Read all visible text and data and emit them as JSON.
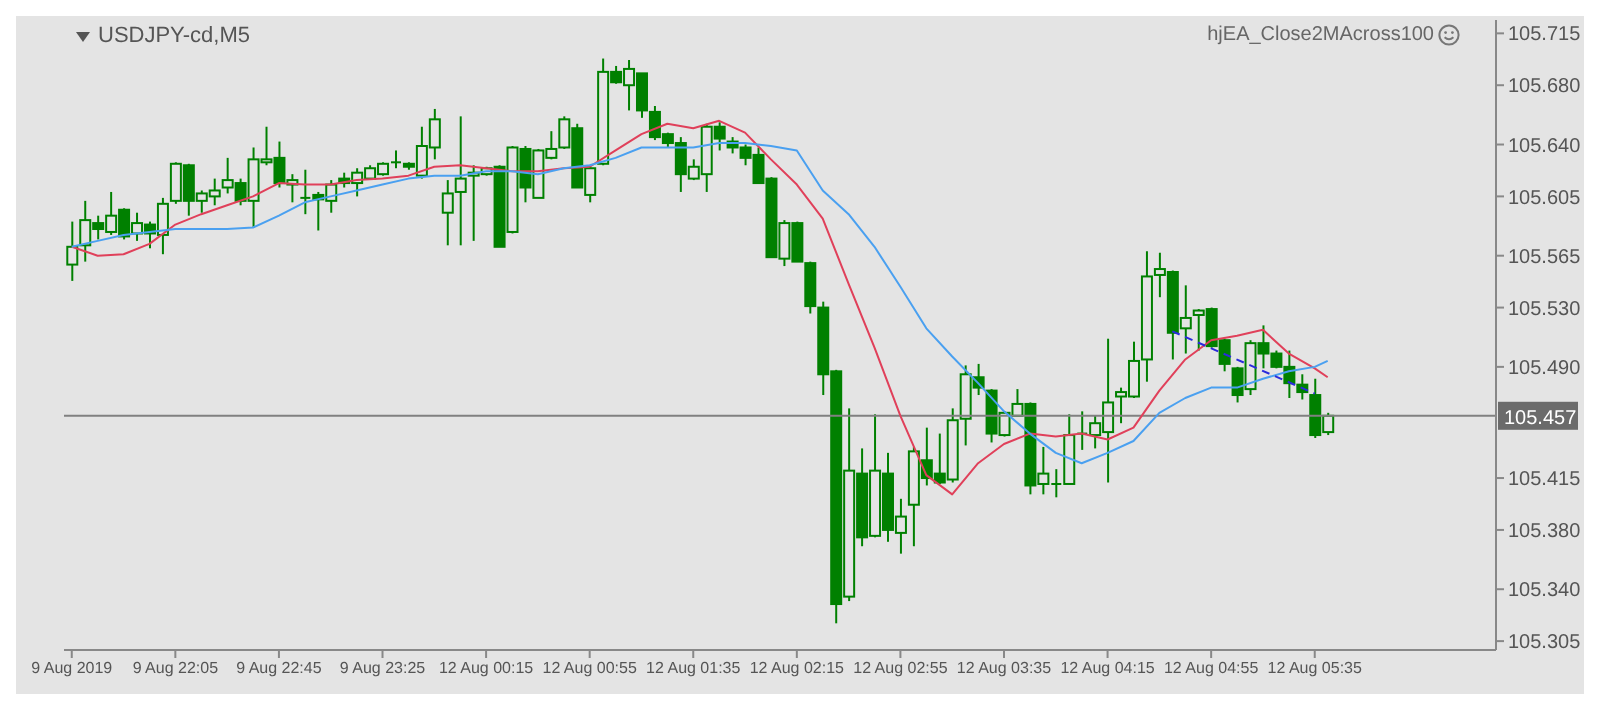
{
  "chart_data": {
    "type": "candlestick",
    "title": "USDJPY-cd,M5",
    "annotations": [
      "hjEA_Close2MAcross100"
    ],
    "color": "#008000",
    "categories": [
      "9 Aug 2019",
      null,
      null,
      null,
      null,
      null,
      null,
      null,
      "9 Aug 22:05",
      null,
      null,
      null,
      null,
      null,
      null,
      null,
      "9 Aug 22:45",
      null,
      null,
      null,
      null,
      null,
      null,
      null,
      "9 Aug 23:25",
      null,
      null,
      null,
      null,
      null,
      null,
      null,
      "12 Aug 00:15",
      null,
      null,
      null,
      null,
      null,
      null,
      null,
      "12 Aug 00:55",
      null,
      null,
      null,
      null,
      null,
      null,
      null,
      "12 Aug 01:35",
      null,
      null,
      null,
      null,
      null,
      null,
      null,
      "12 Aug 02:15",
      null,
      null,
      null,
      null,
      null,
      null,
      null,
      "12 Aug 02:55",
      null,
      null,
      null,
      null,
      null,
      null,
      null,
      "12 Aug 03:35",
      null,
      null,
      null,
      null,
      null,
      null,
      null,
      "12 Aug 04:15",
      null,
      null,
      null,
      null,
      null,
      null,
      null,
      "12 Aug 04:55",
      null,
      null,
      null,
      null,
      null,
      null,
      null,
      "12 Aug 05:35",
      null
    ],
    "ohlc": [
      [
        105.559,
        105.588,
        105.548,
        105.571
      ],
      [
        105.572,
        105.602,
        105.561,
        105.589
      ],
      [
        105.587,
        105.592,
        105.576,
        105.583
      ],
      [
        105.581,
        105.608,
        105.579,
        105.592
      ],
      [
        105.596,
        105.597,
        105.576,
        105.578
      ],
      [
        105.58,
        105.594,
        105.575,
        105.587
      ],
      [
        105.586,
        105.588,
        105.57,
        105.58
      ],
      [
        105.579,
        105.604,
        105.566,
        105.6
      ],
      [
        105.602,
        105.628,
        105.6,
        105.627
      ],
      [
        105.626,
        105.627,
        105.592,
        105.602
      ],
      [
        105.602,
        105.609,
        105.594,
        105.607
      ],
      [
        105.605,
        105.617,
        105.599,
        105.609
      ],
      [
        105.611,
        105.631,
        105.607,
        105.616
      ],
      [
        105.614,
        105.617,
        105.599,
        105.602
      ],
      [
        105.602,
        105.638,
        105.584,
        105.63
      ],
      [
        105.628,
        105.652,
        105.626,
        105.63
      ],
      [
        105.631,
        105.642,
        105.611,
        105.614
      ],
      [
        105.613,
        105.62,
        105.601,
        105.616
      ],
      [
        105.604,
        105.623,
        105.593,
        105.604
      ],
      [
        105.606,
        105.608,
        105.582,
        105.603
      ],
      [
        105.602,
        105.616,
        105.594,
        105.613
      ],
      [
        105.617,
        105.621,
        105.611,
        105.614
      ],
      [
        105.614,
        105.624,
        105.605,
        105.621
      ],
      [
        105.617,
        105.626,
        105.617,
        105.624
      ],
      [
        105.62,
        105.628,
        105.619,
        105.627
      ],
      [
        105.628,
        105.636,
        105.624,
        105.628
      ],
      [
        105.627,
        105.628,
        105.623,
        105.625
      ],
      [
        105.619,
        105.652,
        105.617,
        105.639
      ],
      [
        105.638,
        105.664,
        105.63,
        105.657
      ],
      [
        105.594,
        105.616,
        105.572,
        105.607
      ],
      [
        105.608,
        105.659,
        105.572,
        105.617
      ],
      [
        105.619,
        105.626,
        105.575,
        105.621
      ],
      [
        105.62,
        105.625,
        105.619,
        105.624
      ],
      [
        105.625,
        105.626,
        105.571,
        105.571
      ],
      [
        105.581,
        105.639,
        105.58,
        105.638
      ],
      [
        105.637,
        105.639,
        105.601,
        105.611
      ],
      [
        105.604,
        105.637,
        105.604,
        105.636
      ],
      [
        105.631,
        105.649,
        105.63,
        105.637
      ],
      [
        105.638,
        105.659,
        105.637,
        105.657
      ],
      [
        105.651,
        105.654,
        105.611,
        105.611
      ],
      [
        105.606,
        105.626,
        105.601,
        105.624
      ],
      [
        105.627,
        105.698,
        105.626,
        105.689
      ],
      [
        105.689,
        105.693,
        105.681,
        105.682
      ],
      [
        105.68,
        105.697,
        105.663,
        105.691
      ],
      [
        105.688,
        105.688,
        105.658,
        105.663
      ],
      [
        105.662,
        105.666,
        105.643,
        105.645
      ],
      [
        105.647,
        105.648,
        105.638,
        105.641
      ],
      [
        105.641,
        105.645,
        105.608,
        105.62
      ],
      [
        105.617,
        105.63,
        105.616,
        105.625
      ],
      [
        105.62,
        105.654,
        105.608,
        105.652
      ],
      [
        105.652,
        105.655,
        105.636,
        105.644
      ],
      [
        105.642,
        105.645,
        105.634,
        105.638
      ],
      [
        105.638,
        105.64,
        105.626,
        105.631
      ],
      [
        105.633,
        105.638,
        105.614,
        105.614
      ],
      [
        105.617,
        105.618,
        105.564,
        105.564
      ],
      [
        105.563,
        105.589,
        105.558,
        105.587
      ],
      [
        105.587,
        105.588,
        105.561,
        105.561
      ],
      [
        105.56,
        105.561,
        105.526,
        105.531
      ],
      [
        105.53,
        105.534,
        105.471,
        105.485
      ],
      [
        105.487,
        105.488,
        105.317,
        105.33
      ],
      [
        105.335,
        105.462,
        105.332,
        105.42
      ],
      [
        105.418,
        105.435,
        105.369,
        105.375
      ],
      [
        105.376,
        105.458,
        105.375,
        105.42
      ],
      [
        105.418,
        105.432,
        105.372,
        105.38
      ],
      [
        105.378,
        105.401,
        105.364,
        105.389
      ],
      [
        105.397,
        105.436,
        105.369,
        105.433
      ],
      [
        105.427,
        105.449,
        105.41,
        105.415
      ],
      [
        105.418,
        105.445,
        105.411,
        105.412
      ],
      [
        105.414,
        105.462,
        105.412,
        105.454
      ],
      [
        105.455,
        105.491,
        105.437,
        105.485
      ],
      [
        105.483,
        105.492,
        105.471,
        105.476
      ],
      [
        105.474,
        105.475,
        105.439,
        105.445
      ],
      [
        105.444,
        105.46,
        105.443,
        105.459
      ],
      [
        105.457,
        105.475,
        105.457,
        105.465
      ],
      [
        105.465,
        105.466,
        105.404,
        105.41
      ],
      [
        105.411,
        105.436,
        105.404,
        105.418
      ],
      [
        105.41,
        105.421,
        105.402,
        105.411
      ],
      [
        105.411,
        105.458,
        105.411,
        105.444
      ],
      [
        105.445,
        105.46,
        105.434,
        105.445
      ],
      [
        105.444,
        105.457,
        105.435,
        105.452
      ],
      [
        105.446,
        105.509,
        105.412,
        105.466
      ],
      [
        105.47,
        105.476,
        105.452,
        105.473
      ],
      [
        105.47,
        105.507,
        105.469,
        105.494
      ],
      [
        105.495,
        105.568,
        105.48,
        105.551
      ],
      [
        105.552,
        105.567,
        105.537,
        105.556
      ],
      [
        105.554,
        105.555,
        105.495,
        105.513
      ],
      [
        105.516,
        105.545,
        105.499,
        105.523
      ],
      [
        105.525,
        105.529,
        105.501,
        105.528
      ],
      [
        105.529,
        105.53,
        105.503,
        105.504
      ],
      [
        105.508,
        105.509,
        105.487,
        105.492
      ],
      [
        105.489,
        105.49,
        105.466,
        105.471
      ],
      [
        105.475,
        105.508,
        105.471,
        105.506
      ],
      [
        105.506,
        105.518,
        105.489,
        105.499
      ],
      [
        105.499,
        105.501,
        105.489,
        105.49
      ],
      [
        105.49,
        105.501,
        105.469,
        105.479
      ],
      [
        105.478,
        105.485,
        105.468,
        105.473
      ],
      [
        105.471,
        105.482,
        105.442,
        105.444
      ],
      [
        105.446,
        105.459,
        105.444,
        105.457
      ]
    ],
    "series": [
      {
        "type": "line",
        "color": "#e0405a",
        "values": [
          105.571,
          null,
          105.565,
          null,
          105.566,
          null,
          105.573,
          null,
          105.586,
          null,
          105.593,
          null,
          105.599,
          null,
          105.605,
          null,
          105.614,
          null,
          105.613,
          null,
          105.613,
          null,
          105.616,
          null,
          105.617,
          null,
          105.619,
          null,
          105.625,
          null,
          105.626,
          null,
          105.624,
          null,
          105.622,
          null,
          105.622,
          null,
          105.624,
          null,
          105.625,
          null,
          105.636,
          null,
          105.647,
          null,
          105.654,
          null,
          105.651,
          null,
          105.656,
          null,
          105.648,
          null,
          105.63,
          null,
          105.613,
          null,
          105.59,
          null,
          105.546,
          null,
          105.503,
          null,
          105.457,
          null,
          105.417,
          null,
          105.404,
          null,
          105.425,
          null,
          105.438,
          null,
          105.445,
          null,
          105.443,
          null,
          105.445,
          null,
          105.441,
          null,
          105.449,
          null,
          105.474,
          null,
          105.495,
          null,
          105.508,
          null,
          105.511,
          null,
          105.515,
          null,
          105.499,
          null,
          105.489,
          105.483
        ]
      },
      {
        "type": "line",
        "color": "#4aa0f0",
        "values": [
          105.571,
          null,
          105.575,
          null,
          105.579,
          null,
          105.581,
          null,
          105.583,
          null,
          105.583,
          null,
          105.583,
          null,
          105.584,
          null,
          105.592,
          null,
          105.601,
          null,
          105.605,
          null,
          105.609,
          null,
          105.613,
          null,
          105.617,
          null,
          105.619,
          null,
          105.619,
          null,
          105.622,
          null,
          105.622,
          null,
          105.62,
          null,
          105.624,
          null,
          105.626,
          null,
          105.631,
          null,
          105.638,
          null,
          105.638,
          null,
          105.638,
          null,
          105.641,
          null,
          105.641,
          null,
          105.639,
          null,
          105.636,
          null,
          105.609,
          null,
          105.593,
          null,
          105.571,
          null,
          105.544,
          null,
          105.516,
          null,
          105.497,
          null,
          105.479,
          null,
          105.46,
          null,
          105.445,
          null,
          105.432,
          null,
          105.425,
          null,
          105.432,
          null,
          105.44,
          null,
          105.459,
          null,
          105.469,
          null,
          105.476,
          null,
          105.476,
          null,
          105.482,
          null,
          105.487,
          null,
          105.49,
          105.494
        ]
      },
      {
        "type": "line",
        "color": "#2a2adc",
        "line_style": "dashed",
        "values": [
          null,
          null,
          null,
          null,
          null,
          null,
          null,
          null,
          null,
          null,
          null,
          null,
          null,
          null,
          null,
          null,
          null,
          null,
          null,
          null,
          null,
          null,
          null,
          null,
          null,
          null,
          null,
          null,
          null,
          null,
          null,
          null,
          null,
          null,
          null,
          null,
          null,
          null,
          null,
          null,
          null,
          null,
          null,
          null,
          null,
          null,
          null,
          null,
          null,
          null,
          null,
          null,
          null,
          null,
          null,
          null,
          null,
          null,
          null,
          null,
          null,
          null,
          null,
          null,
          null,
          null,
          null,
          null,
          null,
          null,
          null,
          null,
          null,
          null,
          null,
          null,
          null,
          null,
          null,
          null,
          null,
          null,
          null,
          null,
          null,
          105.514,
          null,
          null,
          null,
          null,
          null,
          null,
          null,
          null,
          null,
          null,
          105.472,
          null
        ]
      }
    ],
    "ylim": [
      105.299,
      105.724
    ],
    "yticks": [
      105.715,
      {
        "value": 105.68,
        "label": "105.680"
      },
      {
        "value": 105.64,
        "label": "105.640"
      },
      105.605,
      105.565,
      {
        "value": 105.53,
        "label": "105.530"
      },
      {
        "value": 105.49,
        "label": "105.490"
      },
      105.415,
      {
        "value": 105.38,
        "label": "105.380"
      },
      {
        "value": 105.34,
        "label": "105.340"
      },
      105.305
    ],
    "ref_lines": [
      {
        "axis": "y",
        "value": 105.457,
        "label": "105.457",
        "color": "#808080"
      }
    ]
  }
}
